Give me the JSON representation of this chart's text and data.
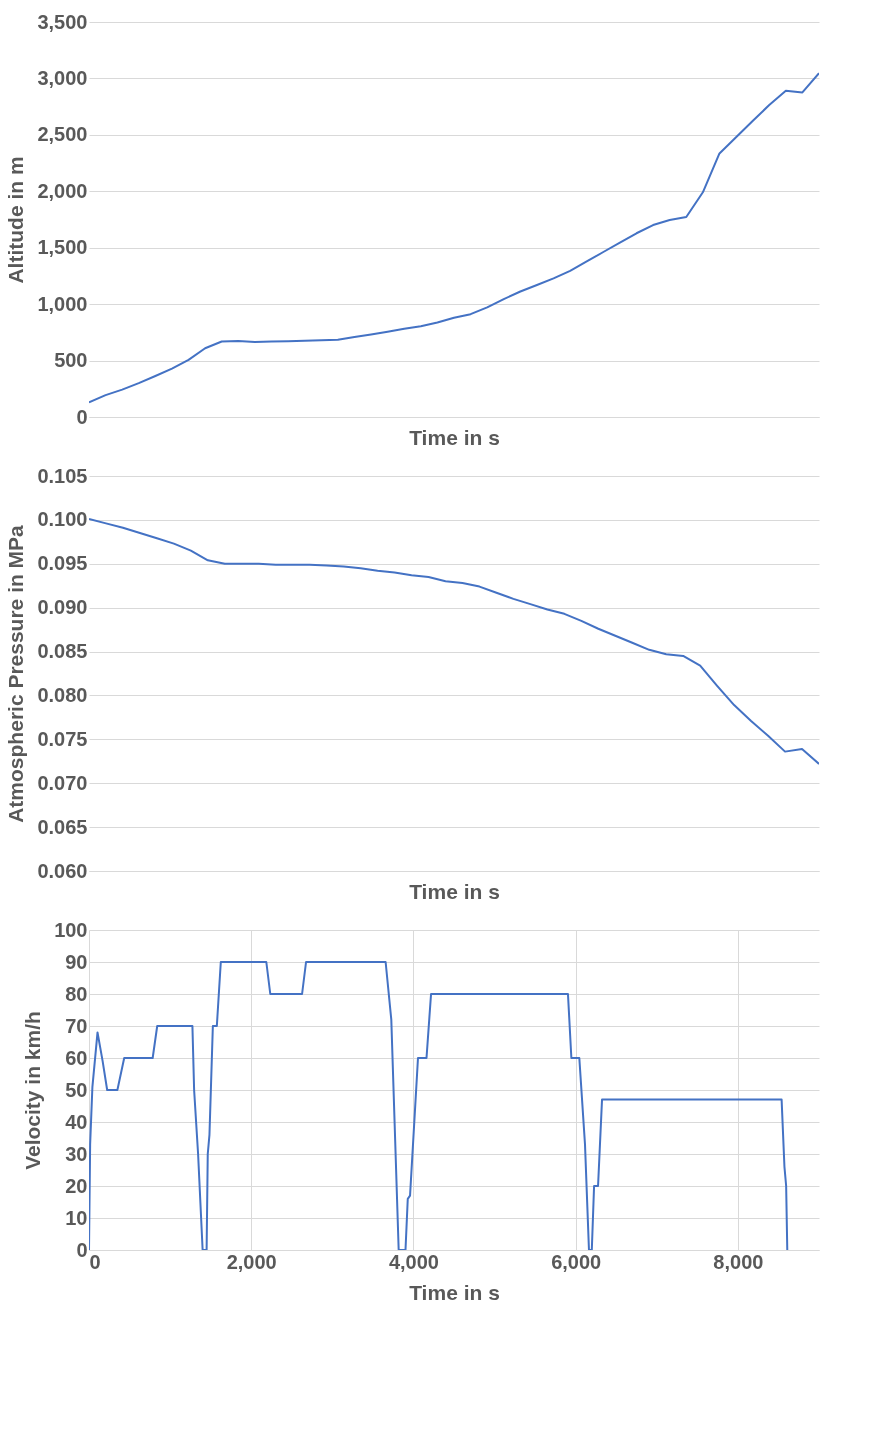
{
  "chart_data": [
    {
      "type": "line",
      "xlabel": "Time in s",
      "ylabel": "Altitude in m",
      "color": "#4472c4",
      "grid": "y",
      "tick_labels": "y",
      "categories": [
        null,
        null,
        null,
        null,
        null,
        null,
        null,
        null,
        null,
        null,
        null,
        null,
        null,
        null,
        null,
        null,
        null,
        null,
        null,
        null,
        null,
        null,
        null,
        null,
        null,
        null,
        null,
        null,
        null,
        null,
        null,
        null,
        null,
        null,
        null,
        null,
        null,
        null,
        null,
        null,
        null,
        null,
        null,
        null,
        null
      ],
      "values": [
        129,
        194,
        243,
        300,
        363,
        429,
        506,
        609,
        669,
        674,
        664,
        668,
        672,
        676,
        680,
        684,
        708,
        732,
        756,
        781,
        805,
        837,
        880,
        911,
        971,
        1045,
        1112,
        1170,
        1228,
        1295,
        1378,
        1462,
        1545,
        1628,
        1701,
        1746,
        1772,
        1991,
        2335,
        2478,
        2622,
        2765,
        2890,
        2876,
        3046
      ],
      "ylim": [
        0,
        3500
      ],
      "yticks": [
        0,
        {
          "value": 500,
          "label": "500"
        },
        {
          "value": 1000,
          "label": "1,000"
        },
        {
          "value": 1500,
          "label": "1,500"
        },
        {
          "value": 2000,
          "label": "2,000"
        },
        {
          "value": 2500,
          "label": "2,500"
        },
        {
          "value": 3000,
          "label": "3,000"
        },
        {
          "value": 3500,
          "label": "3,500"
        }
      ]
    },
    {
      "type": "line",
      "xlabel": "Time in s",
      "ylabel": "Atmospheric  Pressure in MPa",
      "color": "#4472c4",
      "grid": "y",
      "tick_labels": "y",
      "categories": [
        null,
        null,
        null,
        null,
        null,
        null,
        null,
        null,
        null,
        null,
        null,
        null,
        null,
        null,
        null,
        null,
        null,
        null,
        null,
        null,
        null,
        null,
        null,
        null,
        null,
        null,
        null,
        null,
        null,
        null,
        null,
        null,
        null,
        null,
        null,
        null,
        null,
        null,
        null,
        null,
        null,
        null,
        null,
        null
      ],
      "values": [
        0.1001,
        0.0996,
        0.0991,
        0.0985,
        0.0979,
        0.0973,
        0.0965,
        0.0954,
        0.095,
        0.095,
        0.095,
        0.0949,
        0.0949,
        0.0949,
        0.0948,
        0.0947,
        0.0945,
        0.0942,
        0.094,
        0.0937,
        0.0935,
        0.093,
        0.0928,
        0.0924,
        0.0917,
        0.091,
        0.0904,
        0.0898,
        0.0893,
        0.0885,
        0.0876,
        0.0868,
        0.086,
        0.0852,
        0.0847,
        0.0845,
        0.0834,
        0.0811,
        0.0789,
        0.0771,
        0.0754,
        0.0736,
        0.0739,
        0.0722
      ],
      "ylim": [
        0.06,
        0.105
      ],
      "yticks": [
        {
          "value": 0.06,
          "label": "0.060"
        },
        {
          "value": 0.065,
          "label": "0.065"
        },
        {
          "value": 0.07,
          "label": "0.070"
        },
        {
          "value": 0.075,
          "label": "0.075"
        },
        {
          "value": 0.08,
          "label": "0.080"
        },
        {
          "value": 0.085,
          "label": "0.085"
        },
        {
          "value": 0.09,
          "label": "0.090"
        },
        {
          "value": 0.095,
          "label": "0.095"
        },
        {
          "value": 0.1,
          "label": "0.100"
        },
        {
          "value": 0.105,
          "label": "0.105"
        }
      ]
    },
    {
      "type": "line",
      "xlabel": "Time in s",
      "ylabel": "Velocity  in km/h",
      "color": "#4472c4",
      "grid": true,
      "x": [
        0,
        14,
        42,
        105,
        168,
        224,
        350,
        434,
        785,
        841,
        1275,
        1296,
        1345,
        1401,
        1450,
        1464,
        1485,
        1527,
        1576,
        1625,
        2186,
        2235,
        2627,
        2676,
        3657,
        3727,
        3818,
        3902,
        3930,
        3958,
        4056,
        4161,
        4217,
        5905,
        5947,
        6045,
        6115,
        6164,
        6199,
        6227,
        6276,
        6325,
        8539,
        8574,
        8595,
        8609
      ],
      "values": [
        0,
        33,
        51,
        68,
        59,
        50,
        50,
        60,
        60,
        70,
        70,
        50,
        30,
        0,
        0,
        30,
        36,
        70,
        70,
        90,
        90,
        80,
        80,
        90,
        90,
        72,
        0,
        0,
        16,
        17,
        60,
        60,
        80,
        80,
        60,
        60,
        33,
        0,
        0,
        20,
        20,
        47,
        47,
        26,
        20,
        0
      ],
      "xlim": [
        0,
        9000
      ],
      "ylim": [
        0,
        100
      ],
      "xticks": [
        0,
        {
          "value": 2000,
          "label": "2,000"
        },
        {
          "value": 4000,
          "label": "4,000"
        },
        {
          "value": 6000,
          "label": "6,000"
        },
        {
          "value": 8000,
          "label": "8,000"
        }
      ],
      "yticks": [
        0,
        10,
        20,
        30,
        40,
        50,
        60,
        70,
        80,
        90,
        100
      ]
    }
  ]
}
